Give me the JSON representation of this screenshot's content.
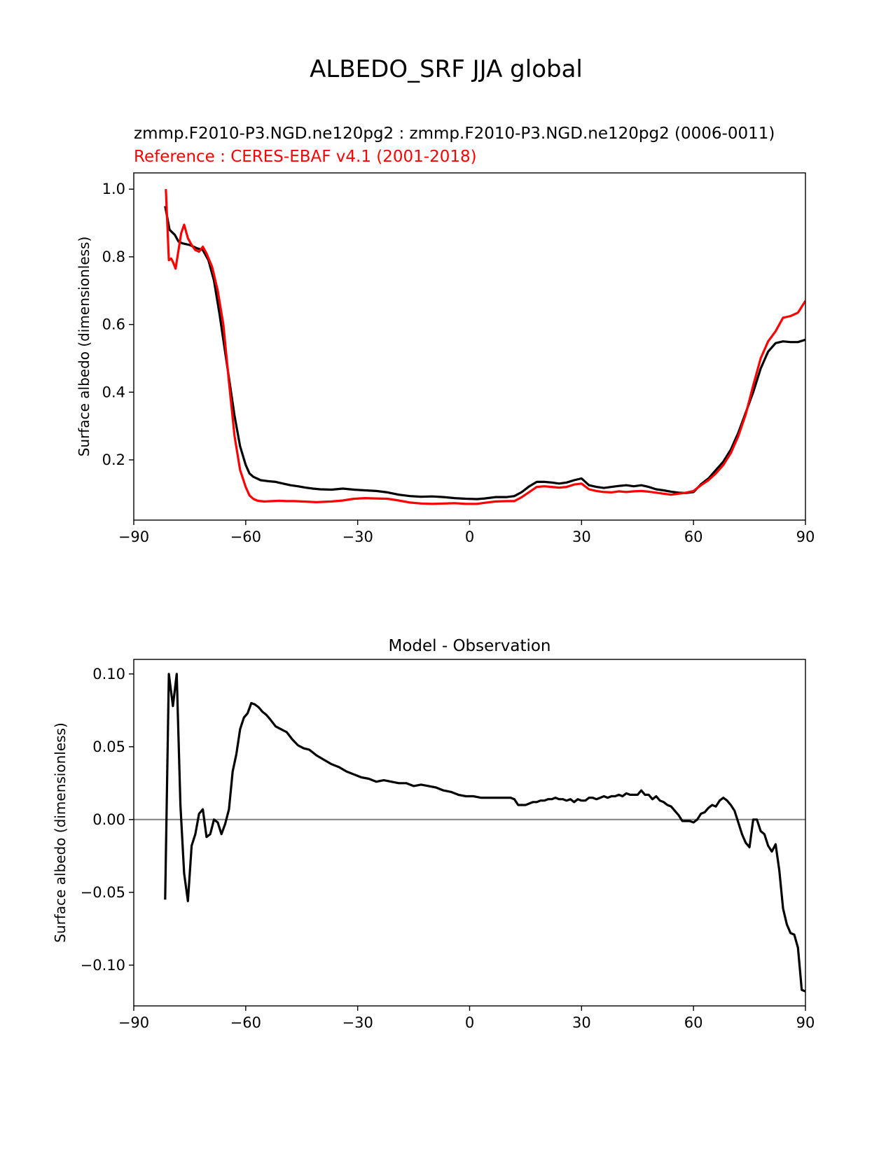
{
  "figure": {
    "suptitle": "ALBEDO_SRF JJA global"
  },
  "chart_data": [
    {
      "type": "line",
      "title_left": "zmmp.F2010-P3.NGD.ne120pg2 : zmmp.F2010-P3.NGD.ne120pg2 (0006-0011)",
      "subtitle_left": "Reference : CERES-EBAF v4.1 (2001-2018)",
      "title_center": "",
      "xlabel": "",
      "ylabel": "Surface albedo (dimensionless)",
      "xlim": [
        -90,
        90
      ],
      "ylim": [
        0.022,
        1.048
      ],
      "xticks": [
        -90,
        -60,
        -30,
        0,
        30,
        60,
        90
      ],
      "xtick_labels": [
        "−90",
        "−60",
        "−30",
        "0",
        "30",
        "60",
        "90"
      ],
      "yticks": [
        0.2,
        0.4,
        0.6,
        0.8,
        1.0
      ],
      "ytick_labels": [
        "0.2",
        "0.4",
        "0.6",
        "0.8",
        "1.0"
      ],
      "grid": false,
      "zero_line": false,
      "series": [
        {
          "color": "#000000",
          "x": [
            -81.6,
            -80.4,
            -79,
            -78,
            -77,
            -75,
            -73,
            -71.5,
            -70,
            -68.5,
            -67,
            -65,
            -63,
            -61.5,
            -60,
            -59,
            -58,
            -57,
            -56,
            -54,
            -52,
            -50,
            -48,
            -46,
            -44,
            -42,
            -40,
            -37,
            -34,
            -31,
            -28,
            -25,
            -22,
            -19,
            -16,
            -13,
            -10,
            -7,
            -4,
            -1,
            2,
            4,
            7,
            10,
            12,
            14,
            16,
            18,
            20,
            22,
            24,
            26,
            28,
            30,
            32,
            34,
            36,
            38,
            40,
            42,
            44,
            46,
            48,
            50,
            52,
            54,
            56,
            58,
            60,
            62,
            64,
            66,
            68,
            70,
            72,
            74,
            76,
            78,
            80,
            82,
            84,
            86,
            88,
            90
          ],
          "y": [
            0.95,
            0.88,
            0.865,
            0.845,
            0.84,
            0.835,
            0.825,
            0.82,
            0.79,
            0.73,
            0.63,
            0.48,
            0.33,
            0.24,
            0.185,
            0.16,
            0.15,
            0.145,
            0.14,
            0.137,
            0.135,
            0.13,
            0.125,
            0.122,
            0.118,
            0.115,
            0.113,
            0.112,
            0.115,
            0.112,
            0.11,
            0.108,
            0.104,
            0.097,
            0.093,
            0.091,
            0.092,
            0.09,
            0.087,
            0.085,
            0.084,
            0.086,
            0.09,
            0.09,
            0.093,
            0.105,
            0.122,
            0.135,
            0.135,
            0.133,
            0.13,
            0.133,
            0.14,
            0.145,
            0.125,
            0.12,
            0.117,
            0.12,
            0.123,
            0.125,
            0.122,
            0.125,
            0.12,
            0.113,
            0.11,
            0.106,
            0.103,
            0.102,
            0.105,
            0.128,
            0.145,
            0.17,
            0.195,
            0.23,
            0.28,
            0.34,
            0.4,
            0.47,
            0.52,
            0.545,
            0.55,
            0.548,
            0.548,
            0.555
          ]
        },
        {
          "color": "#ff0000",
          "x": [
            -81.4,
            -80.6,
            -80,
            -79.5,
            -78.8,
            -78,
            -77.3,
            -76.5,
            -75.5,
            -74.5,
            -73.5,
            -72.5,
            -71.5,
            -70.5,
            -69,
            -67.5,
            -66,
            -64.5,
            -63,
            -61.5,
            -60,
            -59,
            -58,
            -57,
            -56,
            -55,
            -53,
            -51,
            -49,
            -47,
            -45,
            -43,
            -41,
            -39,
            -37,
            -34,
            -31,
            -28,
            -25,
            -22,
            -19,
            -16,
            -13,
            -10,
            -7,
            -4,
            -1,
            2,
            4,
            7,
            10,
            12,
            14,
            16,
            18,
            20,
            22,
            24,
            26,
            28,
            30,
            32,
            34,
            36,
            38,
            40,
            42,
            44,
            46,
            48,
            50,
            52,
            54,
            56,
            58,
            60,
            62,
            64,
            66,
            68,
            70,
            72,
            74,
            76,
            78,
            80,
            82,
            84,
            86,
            88,
            90
          ],
          "y": [
            1.0,
            0.79,
            0.795,
            0.785,
            0.765,
            0.82,
            0.87,
            0.895,
            0.855,
            0.835,
            0.82,
            0.815,
            0.83,
            0.81,
            0.77,
            0.7,
            0.6,
            0.43,
            0.27,
            0.17,
            0.12,
            0.095,
            0.085,
            0.08,
            0.078,
            0.077,
            0.078,
            0.079,
            0.078,
            0.078,
            0.077,
            0.076,
            0.075,
            0.076,
            0.077,
            0.08,
            0.085,
            0.087,
            0.086,
            0.085,
            0.08,
            0.074,
            0.071,
            0.07,
            0.071,
            0.072,
            0.07,
            0.07,
            0.073,
            0.077,
            0.078,
            0.078,
            0.09,
            0.105,
            0.12,
            0.122,
            0.12,
            0.118,
            0.12,
            0.127,
            0.13,
            0.113,
            0.108,
            0.105,
            0.104,
            0.107,
            0.105,
            0.107,
            0.108,
            0.106,
            0.103,
            0.1,
            0.097,
            0.1,
            0.103,
            0.108,
            0.125,
            0.14,
            0.16,
            0.185,
            0.22,
            0.27,
            0.335,
            0.42,
            0.5,
            0.55,
            0.58,
            0.62,
            0.625,
            0.635,
            0.67
          ]
        }
      ]
    },
    {
      "type": "line",
      "title_left": "",
      "subtitle_left": "",
      "title_center": "Model - Observation",
      "xlabel": "",
      "ylabel": "Surface albedo (dimensionless)",
      "xlim": [
        -90,
        90
      ],
      "ylim": [
        -0.128,
        0.11
      ],
      "xticks": [
        -90,
        -60,
        -30,
        0,
        30,
        60,
        90
      ],
      "xtick_labels": [
        "−90",
        "−60",
        "−30",
        "0",
        "30",
        "60",
        "90"
      ],
      "yticks": [
        -0.1,
        -0.05,
        0.0,
        0.05,
        0.1
      ],
      "ytick_labels": [
        "−0.10",
        "−0.05",
        "0.00",
        "0.05",
        "0.10"
      ],
      "grid": false,
      "zero_line": true,
      "zero_line_color": "#808080",
      "series": [
        {
          "color": "#000000",
          "x": [
            -81.6,
            -80.6,
            -79.5,
            -78.5,
            -77.5,
            -76.5,
            -75.5,
            -74.5,
            -73.5,
            -72.5,
            -71.5,
            -70.5,
            -69.5,
            -68.5,
            -67.5,
            -66.5,
            -65.5,
            -64.5,
            -63.5,
            -62.5,
            -61.5,
            -60.5,
            -59.5,
            -58.5,
            -57.5,
            -56.5,
            -55.5,
            -54.5,
            -53.5,
            -52,
            -50.5,
            -49,
            -47.5,
            -46,
            -44.5,
            -43,
            -41,
            -39,
            -37,
            -35,
            -33,
            -31,
            -29,
            -27,
            -25,
            -23,
            -21,
            -19,
            -17,
            -15,
            -13,
            -11,
            -9,
            -7,
            -5,
            -3,
            -1,
            1,
            3,
            5,
            7,
            9,
            11,
            12,
            13,
            14,
            15,
            16,
            17,
            18,
            19,
            20,
            21,
            22,
            23,
            24,
            25,
            26,
            27,
            28,
            29,
            30,
            31,
            32,
            33,
            34,
            35,
            36,
            37,
            38,
            39,
            40,
            41,
            42,
            43,
            44,
            45,
            46,
            47,
            48,
            49,
            50,
            51,
            52,
            53,
            54,
            55,
            56,
            57,
            58,
            59,
            60,
            61,
            62,
            63,
            64,
            65,
            66,
            67,
            68,
            69,
            70,
            71,
            72,
            73,
            74,
            75,
            76,
            77,
            78,
            79,
            80,
            81,
            82,
            83,
            84,
            85,
            86,
            87,
            88,
            89,
            90
          ],
          "y": [
            -0.055,
            0.1,
            0.078,
            0.1,
            0.01,
            -0.037,
            -0.056,
            -0.018,
            -0.01,
            0.004,
            0.007,
            -0.012,
            -0.01,
            0.0,
            -0.002,
            -0.01,
            -0.003,
            0.007,
            0.033,
            0.045,
            0.062,
            0.07,
            0.073,
            0.08,
            0.079,
            0.077,
            0.074,
            0.072,
            0.069,
            0.064,
            0.062,
            0.06,
            0.055,
            0.051,
            0.049,
            0.048,
            0.044,
            0.041,
            0.038,
            0.036,
            0.033,
            0.031,
            0.029,
            0.028,
            0.026,
            0.027,
            0.026,
            0.025,
            0.025,
            0.023,
            0.024,
            0.023,
            0.022,
            0.02,
            0.019,
            0.017,
            0.016,
            0.016,
            0.015,
            0.015,
            0.015,
            0.015,
            0.015,
            0.014,
            0.01,
            0.01,
            0.01,
            0.011,
            0.012,
            0.012,
            0.013,
            0.013,
            0.014,
            0.014,
            0.015,
            0.014,
            0.014,
            0.013,
            0.014,
            0.012,
            0.014,
            0.013,
            0.013,
            0.015,
            0.015,
            0.014,
            0.015,
            0.016,
            0.015,
            0.016,
            0.016,
            0.017,
            0.016,
            0.018,
            0.017,
            0.017,
            0.017,
            0.02,
            0.017,
            0.017,
            0.014,
            0.016,
            0.013,
            0.012,
            0.01,
            0.009,
            0.006,
            0.003,
            -0.001,
            -0.001,
            -0.001,
            -0.002,
            0.0,
            0.004,
            0.005,
            0.008,
            0.01,
            0.009,
            0.013,
            0.015,
            0.013,
            0.01,
            0.006,
            -0.002,
            -0.01,
            -0.016,
            -0.019,
            0.0,
            0.0,
            -0.008,
            -0.01,
            -0.018,
            -0.022,
            -0.017,
            -0.035,
            -0.061,
            -0.072,
            -0.078,
            -0.079,
            -0.088,
            -0.117,
            -0.118
          ]
        }
      ]
    }
  ]
}
